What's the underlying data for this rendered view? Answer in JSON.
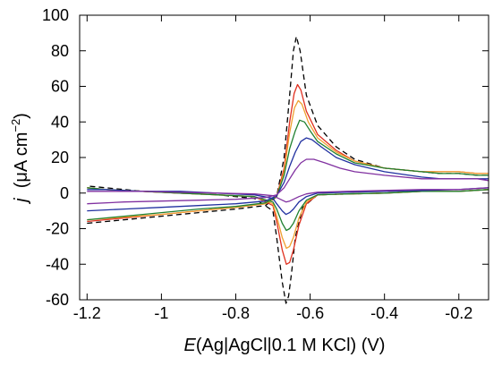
{
  "chart_data": {
    "type": "line",
    "title": "",
    "xlabel": {
      "italic": "E",
      "rest": "(Ag|AgCl|0.1 M KCl) (V)"
    },
    "ylabel": {
      "italic": "j",
      "pre": "  (",
      "mu": "μ",
      "unit": "A cm",
      "sup": "−2",
      "post": ")"
    },
    "xlim": [
      -1.22,
      -0.12
    ],
    "ylim": [
      -60,
      100
    ],
    "xticks": [
      -1.2,
      -1,
      -0.8,
      -0.6,
      -0.4,
      -0.2
    ],
    "xtick_labels": [
      "-1.2",
      "-1",
      "-0.8",
      "-0.6",
      "-0.4",
      "-0.2"
    ],
    "yticks": [
      -60,
      -40,
      -20,
      0,
      20,
      40,
      60,
      80,
      100
    ],
    "ytick_labels": [
      "-60",
      "-40",
      "-20",
      "0",
      "20",
      "40",
      "60",
      "80",
      "100"
    ],
    "grid": false,
    "legend": "none",
    "series": [
      {
        "color": "#000000",
        "dash": "6,4",
        "forward": [
          [
            -1.2,
            -17
          ],
          [
            -1.1,
            -15
          ],
          [
            -1.0,
            -13
          ],
          [
            -0.9,
            -11
          ],
          [
            -0.8,
            -9
          ],
          [
            -0.72,
            -7
          ],
          [
            -0.69,
            -2
          ],
          [
            -0.67,
            20
          ],
          [
            -0.655,
            55
          ],
          [
            -0.645,
            80
          ],
          [
            -0.637,
            88
          ],
          [
            -0.627,
            80
          ],
          [
            -0.61,
            55
          ],
          [
            -0.58,
            38
          ],
          [
            -0.53,
            26
          ],
          [
            -0.48,
            19
          ],
          [
            -0.4,
            14
          ],
          [
            -0.3,
            12
          ],
          [
            -0.25,
            11
          ],
          [
            -0.2,
            11
          ],
          [
            -0.15,
            10
          ],
          [
            -0.12,
            10
          ]
        ],
        "reverse": [
          [
            -0.12,
            2
          ],
          [
            -0.2,
            1
          ],
          [
            -0.3,
            1
          ],
          [
            -0.4,
            0
          ],
          [
            -0.5,
            -0.5
          ],
          [
            -0.58,
            -1
          ],
          [
            -0.62,
            -8
          ],
          [
            -0.64,
            -25
          ],
          [
            -0.65,
            -45
          ],
          [
            -0.658,
            -58
          ],
          [
            -0.665,
            -62
          ],
          [
            -0.675,
            -50
          ],
          [
            -0.69,
            -25
          ],
          [
            -0.7,
            -10
          ],
          [
            -0.75,
            -3
          ],
          [
            -0.85,
            -1
          ],
          [
            -0.95,
            0
          ],
          [
            -1.05,
            1
          ],
          [
            -1.15,
            3
          ],
          [
            -1.2,
            4
          ]
        ]
      },
      {
        "color": "#e03020",
        "dash": "",
        "forward": [
          [
            -1.2,
            -16
          ],
          [
            -1.1,
            -14
          ],
          [
            -1.0,
            -12
          ],
          [
            -0.9,
            -10
          ],
          [
            -0.8,
            -8
          ],
          [
            -0.72,
            -6
          ],
          [
            -0.69,
            -2
          ],
          [
            -0.67,
            14
          ],
          [
            -0.655,
            40
          ],
          [
            -0.643,
            56
          ],
          [
            -0.634,
            61
          ],
          [
            -0.625,
            58
          ],
          [
            -0.61,
            46
          ],
          [
            -0.58,
            33
          ],
          [
            -0.53,
            24
          ],
          [
            -0.48,
            18
          ],
          [
            -0.4,
            14
          ],
          [
            -0.3,
            12
          ],
          [
            -0.25,
            12
          ],
          [
            -0.2,
            12
          ],
          [
            -0.15,
            11
          ],
          [
            -0.12,
            11
          ]
        ],
        "reverse": [
          [
            -0.12,
            2
          ],
          [
            -0.2,
            1
          ],
          [
            -0.3,
            1
          ],
          [
            -0.4,
            0
          ],
          [
            -0.5,
            -0.5
          ],
          [
            -0.58,
            -1
          ],
          [
            -0.61,
            -6
          ],
          [
            -0.63,
            -18
          ],
          [
            -0.645,
            -32
          ],
          [
            -0.655,
            -39
          ],
          [
            -0.664,
            -40
          ],
          [
            -0.675,
            -32
          ],
          [
            -0.69,
            -16
          ],
          [
            -0.7,
            -7
          ],
          [
            -0.75,
            -2
          ],
          [
            -0.85,
            -1
          ],
          [
            -0.95,
            0
          ],
          [
            -1.05,
            1
          ],
          [
            -1.15,
            2
          ],
          [
            -1.2,
            3
          ]
        ]
      },
      {
        "color": "#f0a030",
        "dash": "",
        "forward": [
          [
            -1.2,
            -15
          ],
          [
            -1.1,
            -13.5
          ],
          [
            -1.0,
            -12
          ],
          [
            -0.9,
            -10
          ],
          [
            -0.8,
            -8
          ],
          [
            -0.72,
            -6
          ],
          [
            -0.69,
            -2
          ],
          [
            -0.67,
            12
          ],
          [
            -0.655,
            34
          ],
          [
            -0.642,
            48
          ],
          [
            -0.632,
            52
          ],
          [
            -0.622,
            50
          ],
          [
            -0.605,
            40
          ],
          [
            -0.58,
            31
          ],
          [
            -0.53,
            23
          ],
          [
            -0.48,
            18
          ],
          [
            -0.4,
            14
          ],
          [
            -0.3,
            12
          ],
          [
            -0.25,
            12
          ],
          [
            -0.2,
            12
          ],
          [
            -0.15,
            11
          ],
          [
            -0.12,
            11
          ]
        ],
        "reverse": [
          [
            -0.12,
            2
          ],
          [
            -0.2,
            1
          ],
          [
            -0.3,
            1
          ],
          [
            -0.4,
            0
          ],
          [
            -0.5,
            -0.5
          ],
          [
            -0.58,
            -1
          ],
          [
            -0.61,
            -5
          ],
          [
            -0.63,
            -14
          ],
          [
            -0.645,
            -25
          ],
          [
            -0.655,
            -30
          ],
          [
            -0.664,
            -31
          ],
          [
            -0.675,
            -25
          ],
          [
            -0.69,
            -13
          ],
          [
            -0.7,
            -6
          ],
          [
            -0.75,
            -2
          ],
          [
            -0.85,
            -1
          ],
          [
            -0.95,
            0
          ],
          [
            -1.05,
            1
          ],
          [
            -1.15,
            2
          ],
          [
            -1.2,
            3
          ]
        ]
      },
      {
        "color": "#208030",
        "dash": "",
        "forward": [
          [
            -1.2,
            -15
          ],
          [
            -1.1,
            -13
          ],
          [
            -1.0,
            -11
          ],
          [
            -0.9,
            -9
          ],
          [
            -0.8,
            -7.5
          ],
          [
            -0.72,
            -5.5
          ],
          [
            -0.69,
            -2
          ],
          [
            -0.67,
            10
          ],
          [
            -0.655,
            25
          ],
          [
            -0.64,
            35
          ],
          [
            -0.628,
            41
          ],
          [
            -0.615,
            40
          ],
          [
            -0.6,
            35
          ],
          [
            -0.58,
            29
          ],
          [
            -0.53,
            22
          ],
          [
            -0.48,
            17
          ],
          [
            -0.4,
            14
          ],
          [
            -0.3,
            12
          ],
          [
            -0.25,
            11
          ],
          [
            -0.2,
            11
          ],
          [
            -0.15,
            10
          ],
          [
            -0.12,
            10
          ]
        ],
        "reverse": [
          [
            -0.12,
            2
          ],
          [
            -0.2,
            1
          ],
          [
            -0.3,
            1
          ],
          [
            -0.4,
            0
          ],
          [
            -0.5,
            -0.5
          ],
          [
            -0.58,
            -1
          ],
          [
            -0.61,
            -4
          ],
          [
            -0.63,
            -10
          ],
          [
            -0.645,
            -17
          ],
          [
            -0.655,
            -20
          ],
          [
            -0.664,
            -21
          ],
          [
            -0.675,
            -17
          ],
          [
            -0.69,
            -9
          ],
          [
            -0.7,
            -5
          ],
          [
            -0.75,
            -2
          ],
          [
            -0.85,
            -1
          ],
          [
            -0.95,
            0
          ],
          [
            -1.05,
            1
          ],
          [
            -1.15,
            2
          ],
          [
            -1.2,
            3
          ]
        ]
      },
      {
        "color": "#2030a0",
        "dash": "",
        "forward": [
          [
            -1.2,
            -10
          ],
          [
            -1.1,
            -9
          ],
          [
            -1.0,
            -8
          ],
          [
            -0.9,
            -7
          ],
          [
            -0.8,
            -6
          ],
          [
            -0.72,
            -4.5
          ],
          [
            -0.69,
            -1.5
          ],
          [
            -0.67,
            6
          ],
          [
            -0.655,
            15
          ],
          [
            -0.64,
            23
          ],
          [
            -0.625,
            29
          ],
          [
            -0.61,
            31
          ],
          [
            -0.595,
            30
          ],
          [
            -0.57,
            26
          ],
          [
            -0.53,
            20
          ],
          [
            -0.48,
            16
          ],
          [
            -0.4,
            12
          ],
          [
            -0.3,
            9
          ],
          [
            -0.25,
            8
          ],
          [
            -0.2,
            8
          ],
          [
            -0.15,
            8
          ],
          [
            -0.12,
            8
          ]
        ],
        "reverse": [
          [
            -0.12,
            3
          ],
          [
            -0.2,
            2
          ],
          [
            -0.3,
            1.5
          ],
          [
            -0.4,
            1
          ],
          [
            -0.5,
            0.5
          ],
          [
            -0.58,
            0
          ],
          [
            -0.61,
            -2
          ],
          [
            -0.63,
            -5
          ],
          [
            -0.645,
            -9
          ],
          [
            -0.655,
            -11
          ],
          [
            -0.665,
            -12
          ],
          [
            -0.675,
            -10
          ],
          [
            -0.69,
            -6
          ],
          [
            -0.7,
            -3
          ],
          [
            -0.75,
            -1
          ],
          [
            -0.85,
            0
          ],
          [
            -0.95,
            1
          ],
          [
            -1.05,
            1
          ],
          [
            -1.15,
            2
          ],
          [
            -1.2,
            2
          ]
        ]
      },
      {
        "color": "#8030a0",
        "dash": "",
        "forward": [
          [
            -1.2,
            -6
          ],
          [
            -1.1,
            -5
          ],
          [
            -1.0,
            -4.5
          ],
          [
            -0.9,
            -4
          ],
          [
            -0.8,
            -3.5
          ],
          [
            -0.72,
            -2.5
          ],
          [
            -0.69,
            -1
          ],
          [
            -0.67,
            3
          ],
          [
            -0.655,
            8
          ],
          [
            -0.64,
            13
          ],
          [
            -0.625,
            17
          ],
          [
            -0.61,
            19
          ],
          [
            -0.59,
            19
          ],
          [
            -0.56,
            17
          ],
          [
            -0.52,
            14
          ],
          [
            -0.48,
            12
          ],
          [
            -0.4,
            10
          ],
          [
            -0.3,
            8
          ],
          [
            -0.25,
            8
          ],
          [
            -0.2,
            8
          ],
          [
            -0.15,
            8
          ],
          [
            -0.12,
            7
          ]
        ],
        "reverse": [
          [
            -0.12,
            3
          ],
          [
            -0.2,
            2
          ],
          [
            -0.3,
            2
          ],
          [
            -0.4,
            1.5
          ],
          [
            -0.5,
            1
          ],
          [
            -0.58,
            0.5
          ],
          [
            -0.61,
            -0.5
          ],
          [
            -0.63,
            -2
          ],
          [
            -0.645,
            -3.5
          ],
          [
            -0.655,
            -4.5
          ],
          [
            -0.665,
            -5
          ],
          [
            -0.675,
            -4
          ],
          [
            -0.69,
            -2.5
          ],
          [
            -0.7,
            -1.5
          ],
          [
            -0.75,
            -0.5
          ],
          [
            -0.85,
            0
          ],
          [
            -0.95,
            0.5
          ],
          [
            -1.05,
            1
          ],
          [
            -1.15,
            1
          ],
          [
            -1.2,
            1
          ]
        ]
      }
    ]
  }
}
